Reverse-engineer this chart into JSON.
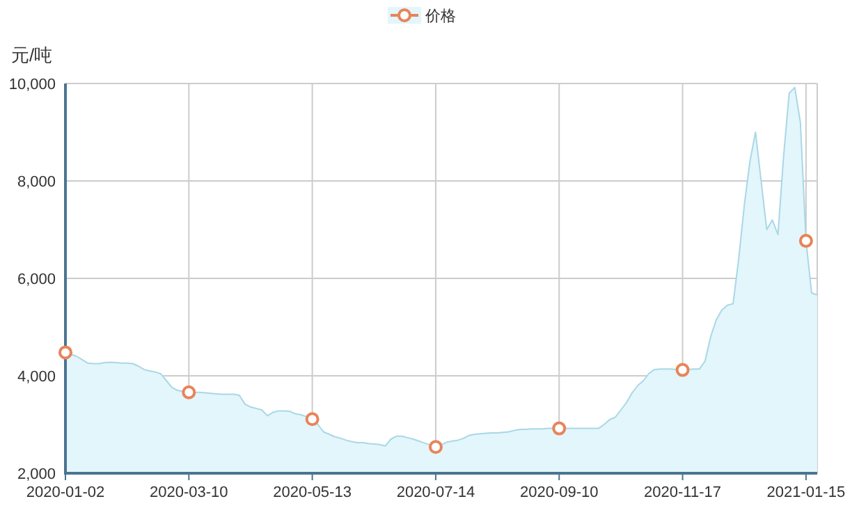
{
  "chart_data": {
    "type": "area",
    "ylabel": "元/吨",
    "categories": [
      "2020-01-02",
      null,
      null,
      null,
      null,
      null,
      null,
      null,
      null,
      null,
      null,
      null,
      null,
      null,
      null,
      null,
      null,
      null,
      null,
      null,
      null,
      null,
      "2020-03-10",
      null,
      null,
      null,
      null,
      null,
      null,
      null,
      null,
      null,
      null,
      null,
      null,
      null,
      null,
      null,
      null,
      null,
      null,
      null,
      null,
      null,
      "2020-05-13",
      null,
      null,
      null,
      null,
      null,
      null,
      null,
      null,
      null,
      null,
      null,
      null,
      null,
      null,
      null,
      null,
      null,
      null,
      null,
      null,
      null,
      "2020-07-14",
      null,
      null,
      null,
      null,
      null,
      null,
      null,
      null,
      null,
      null,
      null,
      null,
      null,
      null,
      null,
      null,
      null,
      null,
      null,
      null,
      null,
      "2020-09-10",
      null,
      null,
      null,
      null,
      null,
      null,
      null,
      null,
      null,
      null,
      null,
      null,
      null,
      null,
      null,
      null,
      null,
      null,
      null,
      null,
      null,
      "2020-11-17",
      null,
      null,
      null,
      null,
      null,
      null,
      null,
      null,
      null,
      null,
      null,
      null,
      null,
      null,
      null,
      null,
      null,
      null,
      null,
      null,
      null,
      "2021-01-15",
      null,
      null
    ],
    "series": [
      {
        "name": "价格",
        "color": "#e2f6fb",
        "values": [
          4480,
          4440,
          4400,
          4330,
          4260,
          4250,
          4250,
          4270,
          4280,
          4270,
          4260,
          4260,
          4250,
          4200,
          4130,
          4100,
          4080,
          4040,
          3900,
          3760,
          3700,
          3680,
          3660,
          3660,
          3660,
          3650,
          3640,
          3630,
          3620,
          3620,
          3620,
          3600,
          3420,
          3360,
          3330,
          3300,
          3180,
          3250,
          3280,
          3280,
          3270,
          3220,
          3200,
          3160,
          3110,
          3000,
          2850,
          2800,
          2750,
          2720,
          2680,
          2650,
          2630,
          2630,
          2610,
          2600,
          2590,
          2560,
          2700,
          2760,
          2760,
          2730,
          2700,
          2660,
          2620,
          2580,
          2540,
          2580,
          2640,
          2660,
          2680,
          2720,
          2780,
          2800,
          2810,
          2820,
          2830,
          2830,
          2840,
          2850,
          2880,
          2900,
          2900,
          2910,
          2910,
          2910,
          2920,
          2920,
          2920,
          2920,
          2920,
          2920,
          2920,
          2920,
          2920,
          2920,
          3000,
          3100,
          3150,
          3300,
          3450,
          3650,
          3800,
          3900,
          4050,
          4130,
          4140,
          4140,
          4140,
          4130,
          4120,
          4130,
          4140,
          4140,
          4300,
          4800,
          5150,
          5350,
          5450,
          5480,
          6400,
          7500,
          8400,
          9000,
          8000,
          7000,
          7200,
          6900,
          8500,
          9800,
          9920,
          9200,
          6770,
          5700,
          5660
        ]
      }
    ],
    "ylim": [
      2000,
      10000
    ],
    "yticks": [
      {
        "value": 2000,
        "label": "2,000"
      },
      {
        "value": 4000,
        "label": "4,000"
      },
      {
        "value": 6000,
        "label": "6,000"
      },
      {
        "value": 8000,
        "label": "8,000"
      },
      {
        "value": 10000,
        "label": "10,000"
      }
    ],
    "grid": true,
    "legend": "top"
  }
}
